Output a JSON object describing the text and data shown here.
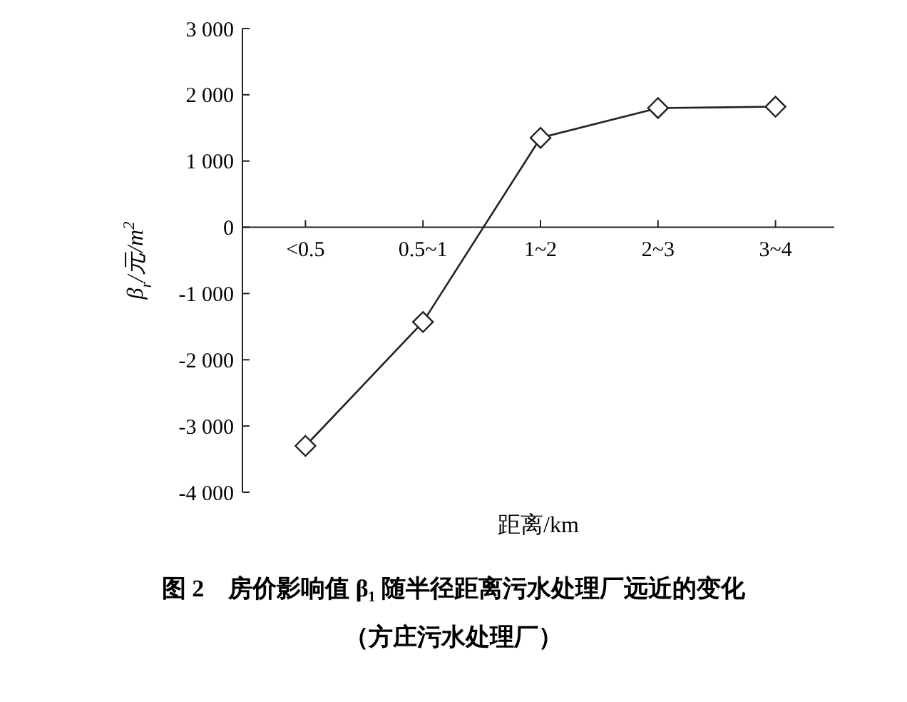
{
  "chart_data": {
    "type": "line",
    "categories": [
      "<0.5",
      "0.5~1",
      "1~2",
      "2~3",
      "3~4"
    ],
    "series": [
      {
        "color": "#222222",
        "values": [
          -3300,
          -1430,
          1350,
          1800,
          1820
        ]
      }
    ],
    "ylim": [
      -4000,
      3000
    ],
    "yticks": [
      {
        "value": 3000,
        "label": "3 000"
      },
      {
        "value": 2000,
        "label": "2 000"
      },
      {
        "value": 1000,
        "label": "1 000"
      },
      0,
      {
        "value": -1000,
        "label": "-1 000"
      },
      {
        "value": -2000,
        "label": "-2 000"
      },
      {
        "value": -3000,
        "label": "-3 000"
      },
      {
        "value": -4000,
        "label": "-4 000"
      }
    ],
    "xlabel": "距离/km",
    "ylabel": "β$_{r}$/元/m$^{2}$",
    "title": "图 2　房价影响值 β₁ 随半径距离污水处理厂远近的变化",
    "subtitle": "（方庄污水处理厂）",
    "marker": "diamond",
    "line_style": "solid"
  }
}
